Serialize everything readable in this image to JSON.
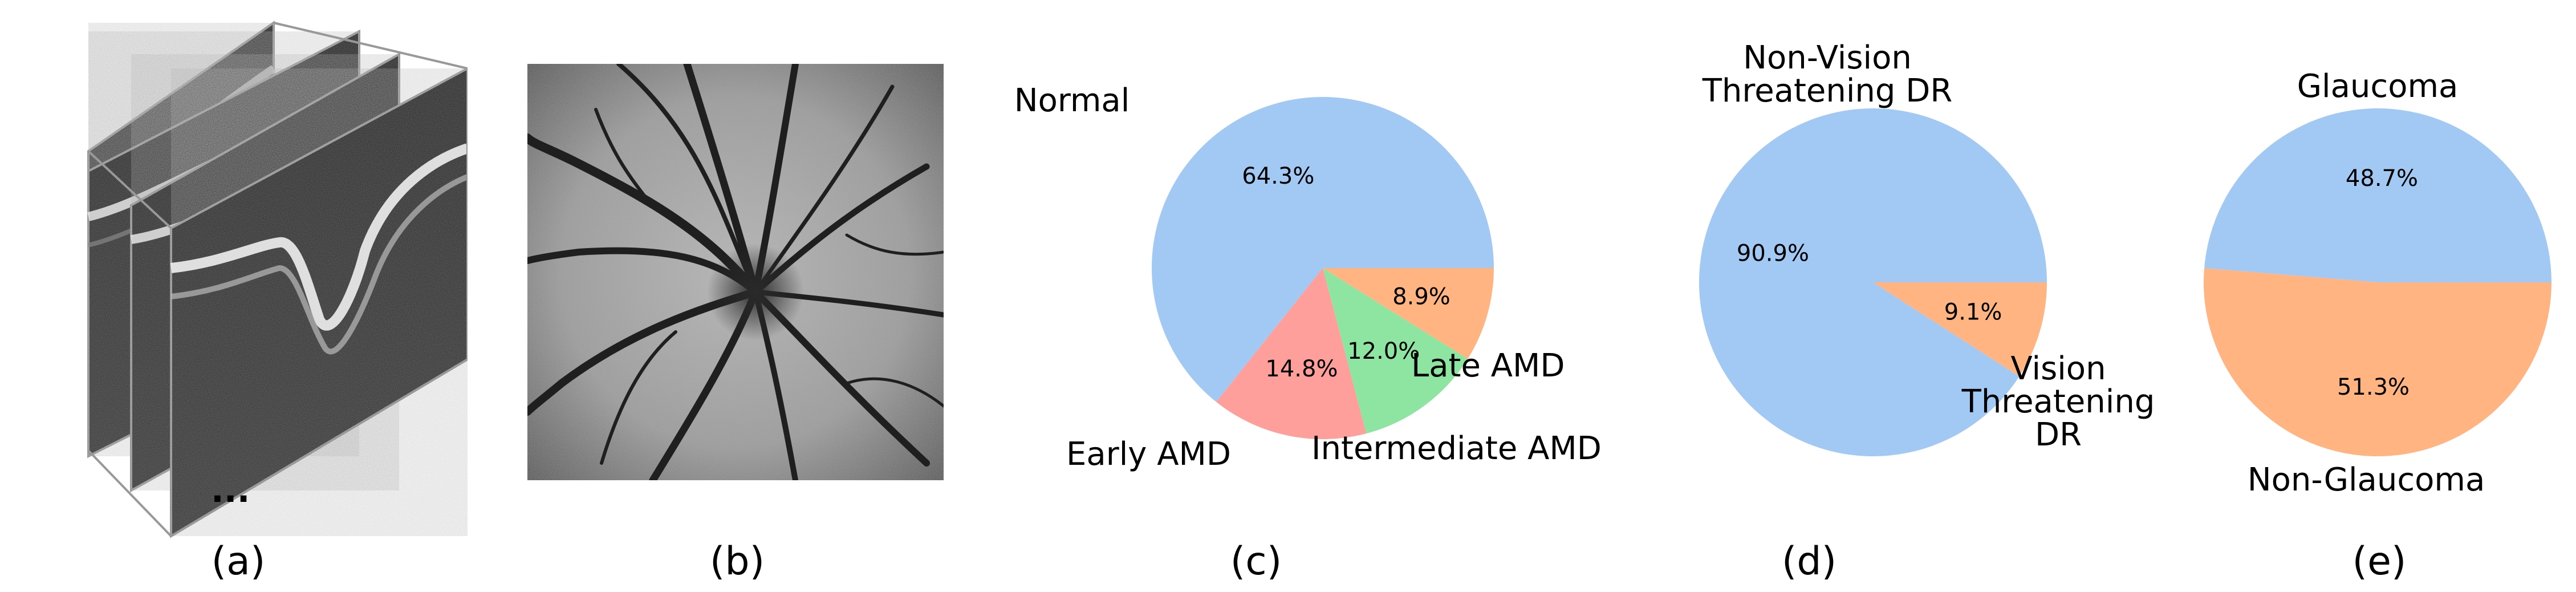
{
  "panels": [
    {
      "caption": "(a)",
      "ellipsis": "..."
    },
    {
      "caption": "(b)"
    },
    {
      "caption": "(c)"
    },
    {
      "caption": "(d)"
    },
    {
      "caption": "(e)"
    }
  ],
  "colors": {
    "blue": "#a1c9f4",
    "orange": "#ffb482",
    "green": "#8de5a1",
    "red": "#ff9f9b"
  },
  "chart_data": [
    {
      "type": "pie",
      "panel": "(c)",
      "slices": [
        {
          "label": "Normal",
          "value": 64.3,
          "pct_label": "64.3%",
          "color": "#a1c9f4"
        },
        {
          "label": "Late AMD",
          "value": 14.8,
          "pct_label": "14.8%",
          "color": "#ff9f9b"
        },
        {
          "label": "Intermediate AMD",
          "value": 12.0,
          "pct_label": "12.0%",
          "color": "#8de5a1"
        },
        {
          "label": "Early AMD",
          "value": 8.9,
          "pct_label": "8.9%",
          "color": "#ffb482"
        }
      ]
    },
    {
      "type": "pie",
      "panel": "(d)",
      "slices": [
        {
          "label": [
            "Non-Vision",
            "Threatening DR"
          ],
          "value": 90.9,
          "pct_label": "90.9%",
          "color": "#a1c9f4"
        },
        {
          "label": [
            "Vision",
            "Threatening",
            "DR"
          ],
          "value": 9.1,
          "pct_label": "9.1%",
          "color": "#ffb482"
        }
      ]
    },
    {
      "type": "pie",
      "panel": "(e)",
      "slices": [
        {
          "label": "Glaucoma",
          "value": 48.7,
          "pct_label": "48.7%",
          "color": "#a1c9f4"
        },
        {
          "label": "Non-Glaucoma",
          "value": 51.3,
          "pct_label": "51.3%",
          "color": "#ffb482"
        }
      ]
    }
  ]
}
